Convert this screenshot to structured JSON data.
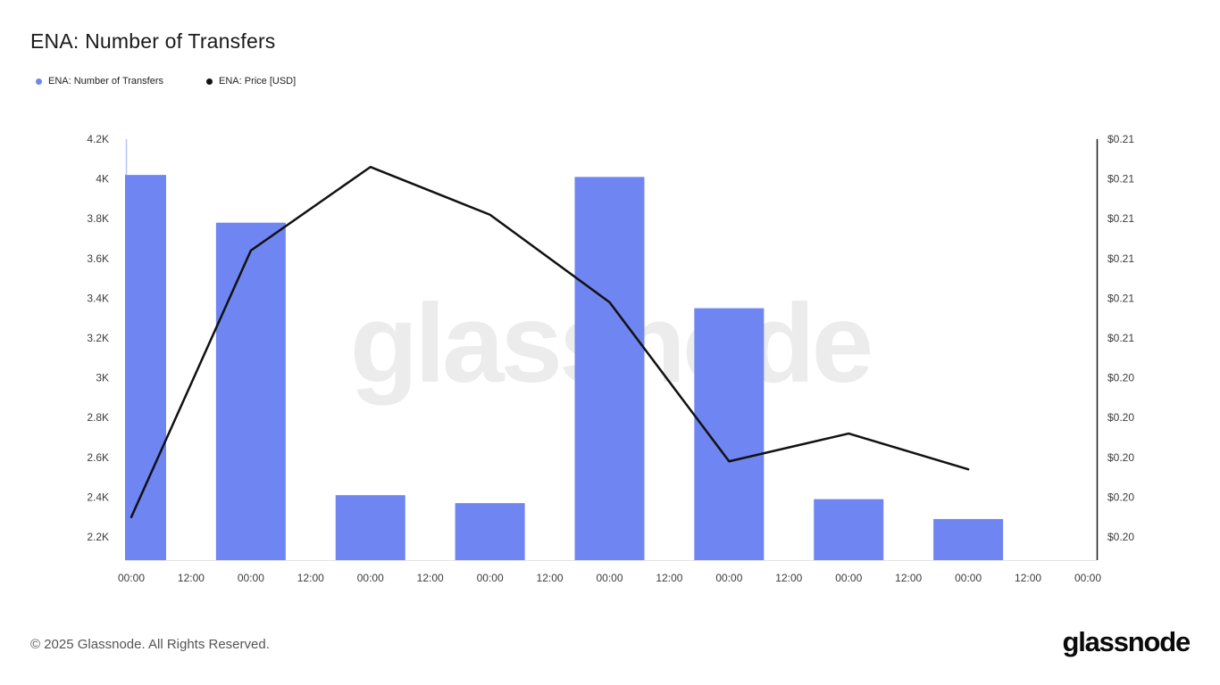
{
  "page": {
    "title": "ENA: Number of Transfers",
    "footer_copyright": "© 2025 Glassnode. All Rights Reserved.",
    "brand_logo": "glassnode",
    "watermark": "glassnode"
  },
  "legend": [
    {
      "label": "ENA: Number of Transfers",
      "color": "#6F85F1",
      "marker": "dot"
    },
    {
      "label": "ENA: Price [USD]",
      "color": "#111111",
      "marker": "dot"
    }
  ],
  "chart_data": {
    "type": "bar+line",
    "title": "ENA: Number of Transfers",
    "grid": false,
    "legend_position": "top-left",
    "watermark": "glassnode",
    "crosshair_color": "#b9c5f8",
    "x_tick_labels": [
      "00:00",
      "12:00",
      "00:00",
      "12:00",
      "00:00",
      "12:00",
      "00:00",
      "12:00",
      "00:00",
      "12:00",
      "00:00",
      "12:00",
      "00:00",
      "12:00",
      "00:00",
      "12:00",
      "00:00"
    ],
    "series_point_tick_indices": [
      0,
      2,
      4,
      6,
      8,
      10,
      12,
      14
    ],
    "left_axis": {
      "tick_labels": [
        "4.2K",
        "4K",
        "3.8K",
        "3.6K",
        "3.4K",
        "3.2K",
        "3K",
        "2.8K",
        "2.6K",
        "2.4K",
        "2.2K"
      ],
      "min": 2200,
      "max": 4200
    },
    "right_axis": {
      "tick_labels": [
        "$0.21",
        "$0.21",
        "$0.21",
        "$0.21",
        "$0.21",
        "$0.21",
        "$0.20",
        "$0.20",
        "$0.20",
        "$0.20",
        "$0.20"
      ],
      "min": 0.2,
      "max": 0.21
    },
    "series": [
      {
        "name": "ENA: Number of Transfers",
        "type": "bar",
        "axis": "left",
        "color": "#6F85F1",
        "values": [
          4020,
          3780,
          2410,
          2370,
          4010,
          3350,
          2390,
          2290
        ]
      },
      {
        "name": "ENA: Price [USD]",
        "type": "line",
        "axis": "right",
        "color": "#111111",
        "values": [
          0.2005,
          0.2072,
          0.2093,
          0.2081,
          0.2059,
          0.2019,
          0.2026,
          0.2017
        ]
      }
    ]
  }
}
